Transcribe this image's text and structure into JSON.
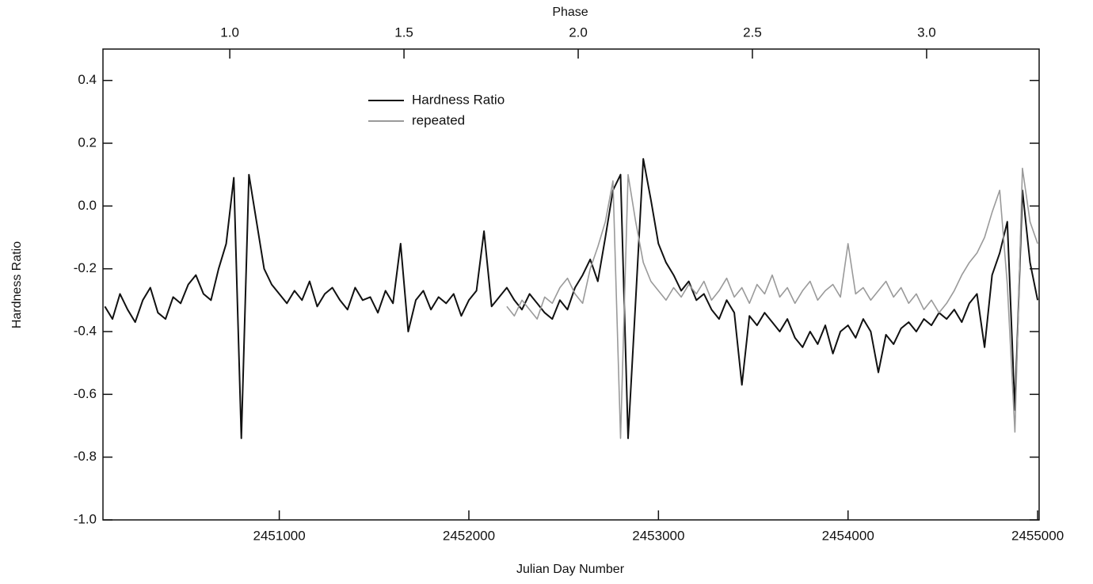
{
  "chart_data": {
    "type": "line",
    "xlabel": "Julian Day Number",
    "ylabel": "Hardness Ratio",
    "x2label": "Phase",
    "xlim": [
      2450070,
      2455008
    ],
    "ylim": [
      -1.0,
      0.5
    ],
    "x2lim": [
      0.636,
      3.323
    ],
    "xticks": [
      2451000,
      2452000,
      2453000,
      2454000,
      2455000
    ],
    "yticks": [
      {
        "value": -1.0,
        "label": "-1.0"
      },
      -0.8,
      -0.6,
      -0.4,
      -0.2,
      {
        "value": 0.0,
        "label": "0.0"
      },
      0.2,
      0.4
    ],
    "x2ticks": [
      {
        "value": 1.0,
        "label": "1.0"
      },
      1.5,
      {
        "value": 2.0,
        "label": "2.0"
      },
      2.5,
      {
        "value": 3.0,
        "label": "3.0"
      }
    ],
    "legend": "upper center",
    "series": [
      {
        "name": "Hardness Ratio",
        "color": "#111111",
        "x": [
          2450080,
          2450120,
          2450160,
          2450200,
          2450240,
          2450280,
          2450320,
          2450360,
          2450400,
          2450440,
          2450480,
          2450520,
          2450560,
          2450600,
          2450640,
          2450680,
          2450720,
          2450760,
          2450800,
          2450840,
          2450880,
          2450920,
          2450960,
          2451000,
          2451040,
          2451080,
          2451120,
          2451160,
          2451200,
          2451240,
          2451280,
          2451320,
          2451360,
          2451400,
          2451440,
          2451480,
          2451520,
          2451560,
          2451600,
          2451640,
          2451680,
          2451720,
          2451760,
          2451800,
          2451840,
          2451880,
          2451920,
          2451960,
          2452000,
          2452040,
          2452080,
          2452120,
          2452160,
          2452200,
          2452240,
          2452280,
          2452320,
          2452360,
          2452400,
          2452440,
          2452480,
          2452520,
          2452560,
          2452600,
          2452640,
          2452680,
          2452720,
          2452760,
          2452800,
          2452840,
          2452880,
          2452920,
          2452960,
          2453000,
          2453040,
          2453080,
          2453120,
          2453160,
          2453200,
          2453240,
          2453280,
          2453320,
          2453360,
          2453400,
          2453440,
          2453480,
          2453520,
          2453560,
          2453600,
          2453640,
          2453680,
          2453720,
          2453760,
          2453800,
          2453840,
          2453880,
          2453920,
          2453960,
          2454000,
          2454040,
          2454080,
          2454120,
          2454160,
          2454200,
          2454240,
          2454280,
          2454320,
          2454360,
          2454400,
          2454440,
          2454480,
          2454520,
          2454560,
          2454600,
          2454640,
          2454680,
          2454720,
          2454760,
          2454800,
          2454840,
          2454880,
          2454920,
          2454960,
          2455000
        ],
        "values": [
          -0.32,
          -0.36,
          -0.28,
          -0.33,
          -0.37,
          -0.3,
          -0.26,
          -0.34,
          -0.36,
          -0.29,
          -0.31,
          -0.25,
          -0.22,
          -0.28,
          -0.3,
          -0.2,
          -0.12,
          0.09,
          -0.74,
          0.1,
          -0.05,
          -0.2,
          -0.25,
          -0.28,
          -0.31,
          -0.27,
          -0.3,
          -0.24,
          -0.32,
          -0.28,
          -0.26,
          -0.3,
          -0.33,
          -0.26,
          -0.3,
          -0.29,
          -0.34,
          -0.27,
          -0.31,
          -0.12,
          -0.4,
          -0.3,
          -0.27,
          -0.33,
          -0.29,
          -0.31,
          -0.28,
          -0.35,
          -0.3,
          -0.27,
          -0.08,
          -0.32,
          -0.29,
          -0.26,
          -0.3,
          -0.33,
          -0.28,
          -0.31,
          -0.34,
          -0.36,
          -0.3,
          -0.33,
          -0.26,
          -0.22,
          -0.17,
          -0.24,
          -0.1,
          0.05,
          0.1,
          -0.74,
          -0.3,
          0.15,
          0.02,
          -0.12,
          -0.18,
          -0.22,
          -0.27,
          -0.24,
          -0.3,
          -0.28,
          -0.33,
          -0.36,
          -0.3,
          -0.34,
          -0.57,
          -0.35,
          -0.38,
          -0.34,
          -0.37,
          -0.4,
          -0.36,
          -0.42,
          -0.45,
          -0.4,
          -0.44,
          -0.38,
          -0.47,
          -0.4,
          -0.38,
          -0.42,
          -0.36,
          -0.4,
          -0.53,
          -0.41,
          -0.44,
          -0.39,
          -0.37,
          -0.4,
          -0.36,
          -0.38,
          -0.34,
          -0.36,
          -0.33,
          -0.37,
          -0.31,
          -0.28,
          -0.45,
          -0.22,
          -0.15,
          -0.05,
          -0.65,
          0.05,
          -0.18,
          -0.3
        ]
      },
      {
        "name": "repeated",
        "color": "#9a9a9a",
        "x": [
          2452200,
          2452240,
          2452280,
          2452320,
          2452360,
          2452400,
          2452440,
          2452480,
          2452520,
          2452560,
          2452600,
          2452640,
          2452680,
          2452720,
          2452760,
          2452800,
          2452840,
          2452880,
          2452920,
          2452960,
          2453000,
          2453040,
          2453080,
          2453120,
          2453160,
          2453200,
          2453240,
          2453280,
          2453320,
          2453360,
          2453400,
          2453440,
          2453480,
          2453520,
          2453560,
          2453600,
          2453640,
          2453680,
          2453720,
          2453760,
          2453800,
          2453840,
          2453880,
          2453920,
          2453960,
          2454000,
          2454040,
          2454080,
          2454120,
          2454160,
          2454200,
          2454240,
          2454280,
          2454320,
          2454360,
          2454400,
          2454440,
          2454480,
          2454520,
          2454560,
          2454600,
          2454640,
          2454680,
          2454720,
          2454760,
          2454800,
          2454840,
          2454880,
          2454920,
          2454960,
          2455000
        ],
        "values": [
          -0.32,
          -0.35,
          -0.3,
          -0.33,
          -0.36,
          -0.29,
          -0.31,
          -0.26,
          -0.23,
          -0.28,
          -0.31,
          -0.2,
          -0.13,
          -0.05,
          0.08,
          -0.74,
          0.1,
          -0.05,
          -0.18,
          -0.24,
          -0.27,
          -0.3,
          -0.26,
          -0.29,
          -0.25,
          -0.28,
          -0.24,
          -0.3,
          -0.27,
          -0.23,
          -0.29,
          -0.26,
          -0.31,
          -0.25,
          -0.28,
          -0.22,
          -0.29,
          -0.26,
          -0.31,
          -0.27,
          -0.24,
          -0.3,
          -0.27,
          -0.25,
          -0.29,
          -0.12,
          -0.28,
          -0.26,
          -0.3,
          -0.27,
          -0.24,
          -0.29,
          -0.26,
          -0.31,
          -0.28,
          -0.33,
          -0.3,
          -0.34,
          -0.31,
          -0.27,
          -0.22,
          -0.18,
          -0.15,
          -0.1,
          -0.02,
          0.05,
          -0.25,
          -0.72,
          0.12,
          -0.05,
          -0.12
        ]
      }
    ]
  }
}
